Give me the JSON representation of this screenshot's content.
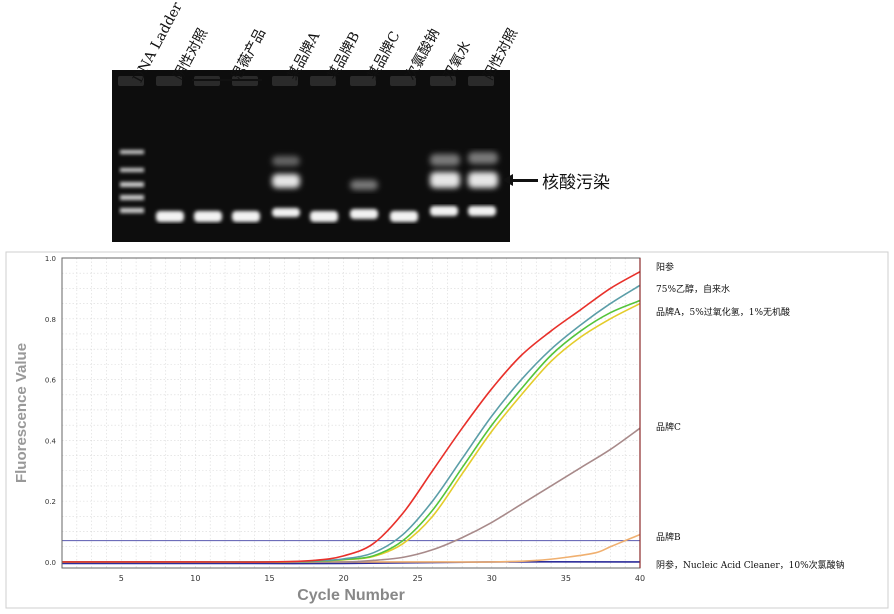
{
  "gel": {
    "lanes": [
      "DNA Ladder",
      "阴性对照",
      "思薇产品",
      "某品牌A",
      "某品牌B",
      "某品牌C",
      "次氯酸钠",
      "双氧水",
      "阳性对照"
    ],
    "annotation": "核酸污染"
  },
  "chart_data": {
    "type": "line",
    "xlabel": "Cycle Number",
    "ylabel": "Fluorescence Value",
    "xlim": [
      1,
      40
    ],
    "ylim": [
      -0.02,
      1.0
    ],
    "xticks": [
      5,
      10,
      15,
      20,
      25,
      30,
      35,
      40
    ],
    "yticks": [
      0.0,
      0.2,
      0.4,
      0.6,
      0.8,
      1.0
    ],
    "ytick_labels": [
      "0.0",
      "0.2",
      "0.4",
      "0.6",
      "0.8",
      "1.0"
    ],
    "threshold": 0.07,
    "grid": true,
    "series": [
      {
        "name": "阳参",
        "color": "#e8302a",
        "x": [
          1,
          10,
          15,
          18,
          20,
          22,
          24,
          26,
          28,
          30,
          32,
          34,
          36,
          38,
          40
        ],
        "y": [
          0.0,
          0.0,
          0.0,
          0.005,
          0.02,
          0.06,
          0.16,
          0.3,
          0.44,
          0.57,
          0.68,
          0.76,
          0.83,
          0.9,
          0.955
        ]
      },
      {
        "name": "75%乙醇，自来水",
        "color": "#5b9ea8",
        "x": [
          1,
          10,
          15,
          18,
          20,
          22,
          24,
          26,
          28,
          30,
          32,
          34,
          36,
          38,
          40
        ],
        "y": [
          0.0,
          0.0,
          0.0,
          0.003,
          0.01,
          0.03,
          0.09,
          0.2,
          0.34,
          0.48,
          0.6,
          0.7,
          0.78,
          0.85,
          0.91
        ]
      },
      {
        "name": "品牌A，5%过氧化氢，1%无机酸",
        "color": "#55c43a",
        "x": [
          1,
          10,
          15,
          18,
          20,
          22,
          24,
          26,
          28,
          30,
          32,
          34,
          36,
          38,
          40
        ],
        "y": [
          0.0,
          0.0,
          0.0,
          0.002,
          0.008,
          0.02,
          0.07,
          0.17,
          0.31,
          0.45,
          0.57,
          0.68,
          0.76,
          0.82,
          0.86
        ]
      },
      {
        "name": "品牌A，5%过氧化氢，1%无机酸",
        "color": "#e4cc2a",
        "x": [
          1,
          10,
          15,
          18,
          20,
          22,
          24,
          26,
          28,
          30,
          32,
          34,
          36,
          38,
          40
        ],
        "y": [
          0.0,
          0.0,
          0.0,
          0.002,
          0.007,
          0.018,
          0.06,
          0.15,
          0.29,
          0.43,
          0.55,
          0.66,
          0.74,
          0.8,
          0.85
        ]
      },
      {
        "name": "品牌C",
        "color": "#a88a8a",
        "x": [
          1,
          10,
          15,
          20,
          22,
          24,
          26,
          28,
          30,
          32,
          34,
          36,
          38,
          40
        ],
        "y": [
          0.0,
          0.0,
          0.0,
          0.0,
          0.005,
          0.015,
          0.04,
          0.08,
          0.13,
          0.19,
          0.25,
          0.31,
          0.37,
          0.44
        ]
      },
      {
        "name": "品牌B",
        "color": "#f0b070",
        "x": [
          1,
          10,
          20,
          25,
          30,
          33,
          35,
          37,
          38,
          39,
          40
        ],
        "y": [
          0.0,
          0.0,
          0.0,
          0.0,
          0.0,
          0.005,
          0.015,
          0.03,
          0.05,
          0.07,
          0.09
        ]
      },
      {
        "name": "阴参，Nucleic Acid Cleaner，10%次氯酸钠",
        "color": "#2d2d9a",
        "x": [
          1,
          10,
          20,
          30,
          40
        ],
        "y": [
          -0.005,
          -0.005,
          -0.005,
          0.0,
          0.0
        ]
      }
    ],
    "legend_labels": [
      "阳参",
      "75%乙醇，自来水",
      "品牌A，5%过氧化氢，1%无机酸",
      "品牌C",
      "品牌B",
      "阴参，Nucleic Acid Cleaner，10%次氯酸钠"
    ]
  }
}
